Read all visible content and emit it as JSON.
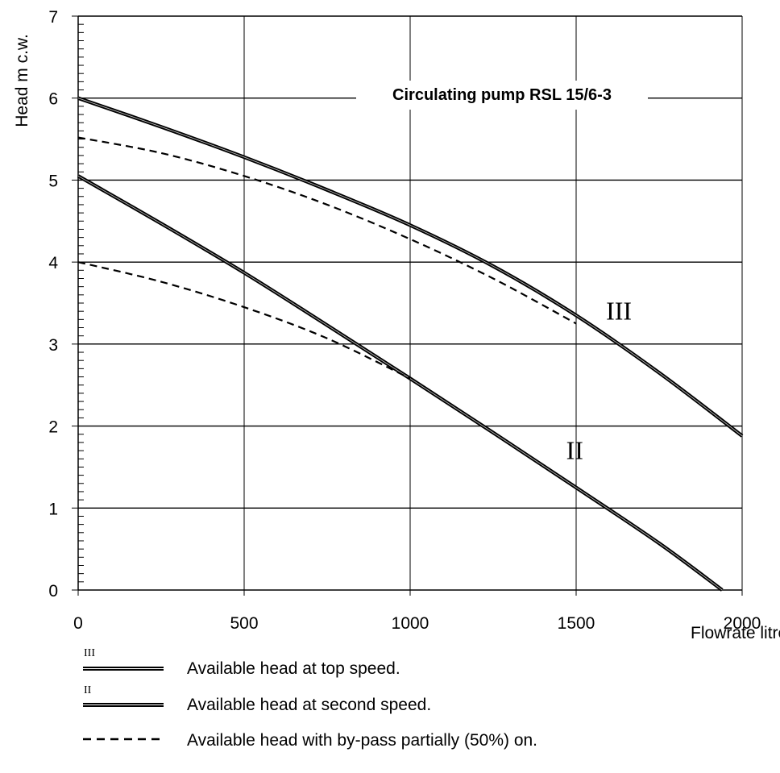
{
  "chart_data": {
    "type": "line",
    "title": "Circulating pump RSL 15/6-3",
    "xlabel": "Flowrate litres/h",
    "ylabel": "Head m c.w.",
    "xlim": [
      0,
      2000
    ],
    "ylim": [
      0,
      7
    ],
    "x_ticks": [
      "0",
      "500",
      "1000",
      "1500",
      "2000"
    ],
    "y_ticks": [
      "0",
      "1",
      "2",
      "3",
      "4",
      "5",
      "6",
      "7"
    ],
    "grid": true,
    "series": [
      {
        "name": "III",
        "style": "solid",
        "x": [
          0,
          250,
          500,
          750,
          1000,
          1250,
          1500,
          1750,
          2000
        ],
        "y": [
          6.0,
          5.65,
          5.28,
          4.88,
          4.45,
          3.95,
          3.35,
          2.65,
          1.88
        ]
      },
      {
        "name": "II",
        "style": "solid",
        "x": [
          0,
          250,
          500,
          750,
          1000,
          1250,
          1500,
          1750,
          1940
        ],
        "y": [
          5.05,
          4.47,
          3.87,
          3.23,
          2.58,
          1.92,
          1.25,
          0.57,
          0.0
        ]
      },
      {
        "style": "dashed",
        "x": [
          0,
          250,
          500,
          750,
          1000,
          1250,
          1500
        ],
        "y": [
          5.52,
          5.33,
          5.05,
          4.7,
          4.28,
          3.8,
          3.25
        ]
      },
      {
        "style": "dashed",
        "x": [
          0,
          250,
          500,
          750,
          1000
        ],
        "y": [
          4.0,
          3.76,
          3.45,
          3.07,
          2.58
        ]
      }
    ],
    "curve_labels": [
      {
        "text": "III",
        "x": 1590,
        "y": 3.3
      },
      {
        "text": "II",
        "x": 1470,
        "y": 1.6
      }
    ]
  },
  "legend": [
    {
      "tag": "III",
      "style": "double",
      "text": "Available head at top speed."
    },
    {
      "tag": "II",
      "style": "double",
      "text": "Available head at second speed."
    },
    {
      "tag": "",
      "style": "dashed",
      "text": "Available head with by-pass partially (50%) on."
    }
  ]
}
